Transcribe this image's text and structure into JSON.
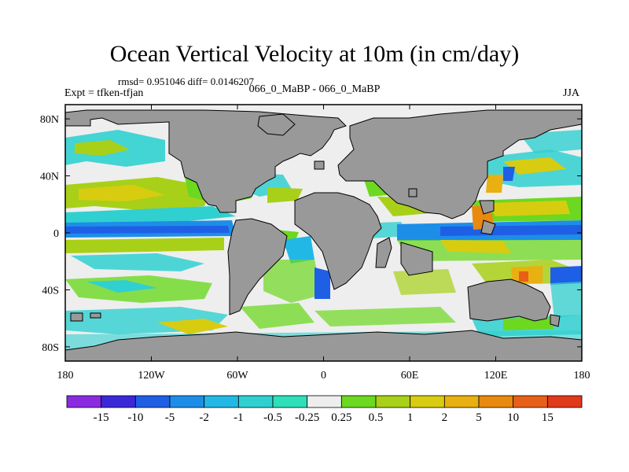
{
  "figure": {
    "title": "Ocean Vertical Velocity at 10m (in cm/day)",
    "stats": "rmsd= 0.951046 diff= 0.0146207",
    "expt": "Expt = tfken-tfjan",
    "experiment_name": "066_0_MaBP - 066_0_MaBP",
    "season": "JJA"
  },
  "axes": {
    "x_ticks": [
      {
        "lon": -180,
        "label": "180"
      },
      {
        "lon": -120,
        "label": "120W"
      },
      {
        "lon": -60,
        "label": "60W"
      },
      {
        "lon": 0,
        "label": "0"
      },
      {
        "lon": 60,
        "label": "60E"
      },
      {
        "lon": 120,
        "label": "120E"
      },
      {
        "lon": 180,
        "label": "180"
      }
    ],
    "y_ticks": [
      {
        "lat": 80,
        "label": "80N"
      },
      {
        "lat": 40,
        "label": "40N"
      },
      {
        "lat": 0,
        "label": "0"
      },
      {
        "lat": -40,
        "label": "40S"
      },
      {
        "lat": -80,
        "label": "80S"
      }
    ],
    "lon_range": [
      -180,
      180
    ],
    "lat_range": [
      -90,
      90
    ]
  },
  "colorbar": {
    "colors": [
      "#8a2be2",
      "#3b28d8",
      "#1f5fe6",
      "#1d8ee8",
      "#22b8e6",
      "#30d0d0",
      "#2ee0b8",
      "#eeeeee",
      "#6cd820",
      "#a8d018",
      "#d8cc10",
      "#e8b010",
      "#e88a10",
      "#e86018",
      "#e03a1a"
    ],
    "labels": [
      "-15",
      "-10",
      "-5",
      "-2",
      "-1",
      "-0.5",
      "-0.25",
      "0.25",
      "0.5",
      "1",
      "2",
      "5",
      "10",
      "15"
    ]
  },
  "colors": {
    "land": "#999999",
    "background_field": "#eeeeee",
    "equatorial_band": "#1d8ee8"
  }
}
